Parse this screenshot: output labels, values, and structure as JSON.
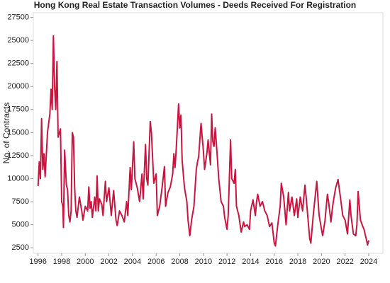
{
  "chart_data": {
    "type": "line",
    "title": "Hong Kong Real Estate Transaction Volumes - Deeds Received For Registration",
    "y_label": "No. of Contracts",
    "color": "#c8163f",
    "x": [
      1996.0,
      1996.1,
      1996.2,
      1996.3,
      1996.4,
      1996.5,
      1996.6,
      1996.8,
      1997.0,
      1997.1,
      1997.2,
      1997.3,
      1997.4,
      1997.5,
      1997.6,
      1997.7,
      1997.9,
      1998.0,
      1998.1,
      1998.15,
      1998.25,
      1998.4,
      1998.5,
      1998.6,
      1998.7,
      1998.8,
      1998.9,
      1999.0,
      1999.1,
      1999.2,
      1999.3,
      1999.5,
      1999.7,
      1999.8,
      2000.0,
      2000.2,
      2000.3,
      2000.4,
      2000.5,
      2000.6,
      2000.8,
      2000.9,
      2001.0,
      2001.1,
      2001.2,
      2001.4,
      2001.5,
      2001.7,
      2001.8,
      2002.0,
      2002.2,
      2002.4,
      2002.6,
      2002.7,
      2002.9,
      2003.1,
      2003.3,
      2003.5,
      2003.6,
      2003.8,
      2003.9,
      2004.1,
      2004.2,
      2004.4,
      2004.6,
      2004.8,
      2004.9,
      2005.1,
      2005.2,
      2005.3,
      2005.5,
      2005.6,
      2005.8,
      2006.0,
      2006.1,
      2006.3,
      2006.5,
      2006.7,
      2006.8,
      2007.0,
      2007.2,
      2007.4,
      2007.5,
      2007.6,
      2007.7,
      2007.9,
      2008.0,
      2008.1,
      2008.2,
      2008.4,
      2008.6,
      2008.7,
      2008.85,
      2009.0,
      2009.2,
      2009.4,
      2009.5,
      2009.6,
      2009.8,
      2010.0,
      2010.1,
      2010.3,
      2010.4,
      2010.6,
      2010.7,
      2010.8,
      2010.9,
      2011.0,
      2011.1,
      2011.3,
      2011.5,
      2011.7,
      2011.8,
      2012.0,
      2012.1,
      2012.3,
      2012.4,
      2012.6,
      2012.7,
      2012.8,
      2013.0,
      2013.2,
      2013.4,
      2013.5,
      2013.7,
      2013.9,
      2014.0,
      2014.2,
      2014.4,
      2014.5,
      2014.6,
      2014.8,
      2015.0,
      2015.2,
      2015.4,
      2015.6,
      2015.8,
      2016.0,
      2016.1,
      2016.3,
      2016.5,
      2016.6,
      2016.8,
      2017.0,
      2017.2,
      2017.3,
      2017.5,
      2017.7,
      2017.9,
      2018.0,
      2018.2,
      2018.4,
      2018.6,
      2018.7,
      2018.9,
      2019.0,
      2019.1,
      2019.3,
      2019.5,
      2019.6,
      2019.8,
      2020.0,
      2020.1,
      2020.3,
      2020.5,
      2020.6,
      2020.8,
      2020.9,
      2021.0,
      2021.2,
      2021.4,
      2021.6,
      2021.8,
      2022.0,
      2022.2,
      2022.4,
      2022.5,
      2022.7,
      2022.9,
      2023.0,
      2023.1,
      2023.3,
      2023.5,
      2023.6,
      2023.8,
      2023.9,
      2024.0
    ],
    "values": [
      9200,
      11800,
      10000,
      16500,
      11000,
      12700,
      10200,
      15000,
      17000,
      19700,
      17500,
      25500,
      20000,
      17500,
      22700,
      14500,
      15400,
      7500,
      7000,
      4700,
      13100,
      9300,
      8800,
      6000,
      5300,
      6500,
      15000,
      14500,
      9000,
      6500,
      5800,
      8000,
      6500,
      5500,
      7000,
      6500,
      9100,
      6800,
      7500,
      5800,
      8000,
      6500,
      10300,
      6500,
      7800,
      7200,
      6000,
      9700,
      7500,
      9000,
      6000,
      8700,
      5500,
      4900,
      6500,
      6000,
      5300,
      7500,
      6000,
      11200,
      8800,
      14000,
      10000,
      9000,
      7500,
      10500,
      7800,
      13700,
      10000,
      9300,
      16200,
      15000,
      9500,
      10500,
      6000,
      7000,
      9000,
      11300,
      7000,
      8500,
      9100,
      10500,
      12700,
      11200,
      13200,
      18100,
      15500,
      16900,
      12000,
      9000,
      7500,
      5500,
      3800,
      5500,
      7000,
      11000,
      11800,
      12400,
      16000,
      13000,
      11000,
      12800,
      14200,
      11500,
      17000,
      14000,
      13500,
      15500,
      13800,
      10000,
      7500,
      7000,
      5800,
      4500,
      6000,
      14200,
      10000,
      9500,
      11000,
      7000,
      6000,
      4200,
      5300,
      4800,
      5000,
      4500,
      6500,
      7700,
      6000,
      7500,
      8300,
      7000,
      7500,
      6500,
      6000,
      4800,
      5200,
      3000,
      2700,
      5000,
      7000,
      9500,
      8000,
      5000,
      8500,
      6500,
      8000,
      6000,
      7800,
      5800,
      8000,
      6500,
      9300,
      8000,
      5000,
      3500,
      3000,
      6000,
      8500,
      9700,
      6000,
      4500,
      3800,
      5500,
      8300,
      7500,
      5300,
      6500,
      7500,
      9000,
      9900,
      8000,
      6000,
      5500,
      4000,
      7700,
      6000,
      4000,
      3800,
      5000,
      8600,
      5500,
      4800,
      4500,
      3400,
      2800,
      3300
    ],
    "xlim": [
      1995.6,
      2025.2
    ],
    "xticks": [
      1996,
      1998,
      2000,
      2002,
      2004,
      2006,
      2008,
      2010,
      2012,
      2014,
      2016,
      2018,
      2020,
      2022,
      2024
    ],
    "ylim": [
      1900,
      28000
    ],
    "yticks": [
      2500,
      5000,
      7500,
      10000,
      12500,
      15000,
      17500,
      20000,
      22500,
      25000,
      27500
    ]
  }
}
